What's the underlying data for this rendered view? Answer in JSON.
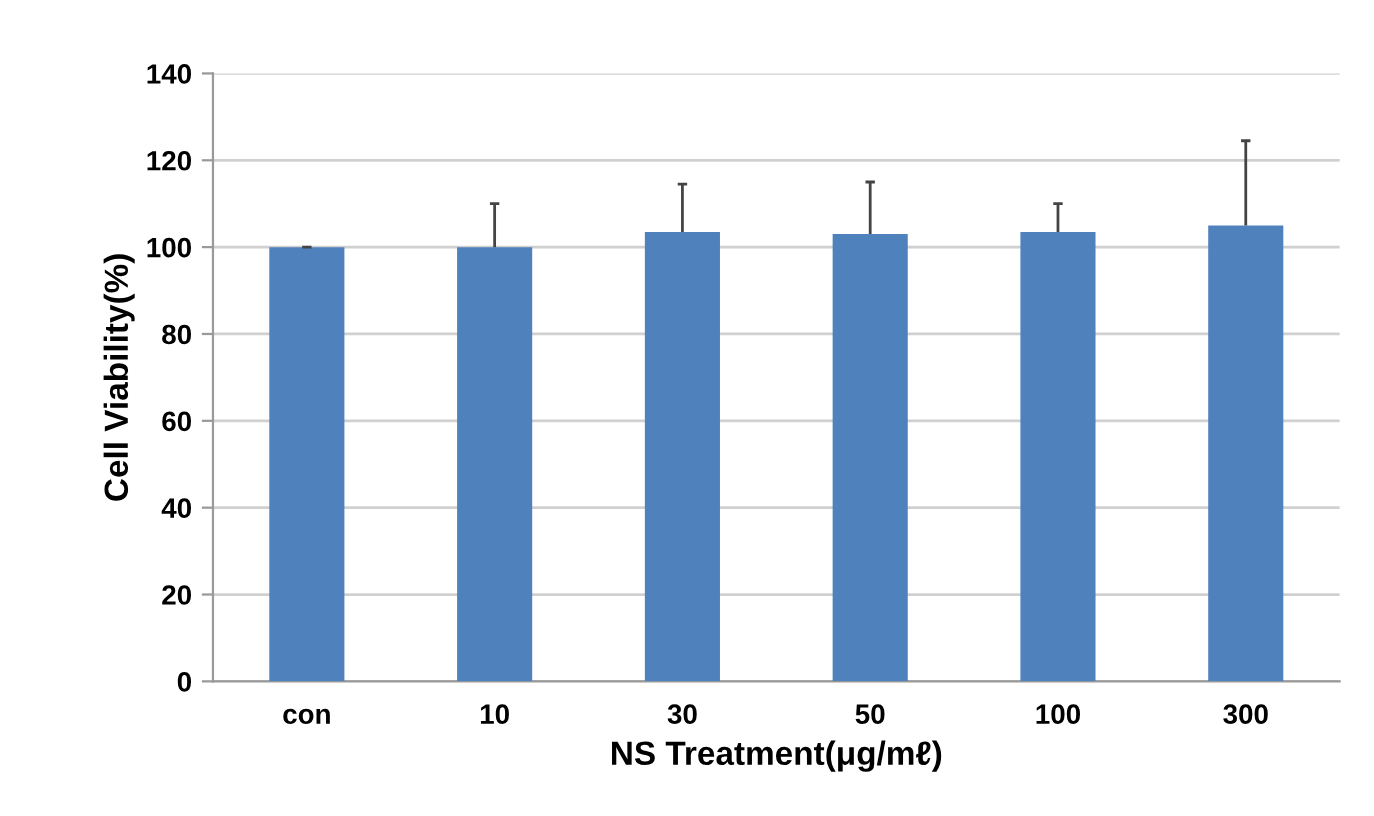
{
  "chart_data": {
    "type": "bar",
    "xlabel": "NS Treatment(μg/mℓ)",
    "ylabel": "Cell Viability(%)",
    "categories": [
      "con",
      "10",
      "30",
      "50",
      "100",
      "300"
    ],
    "values": [
      100,
      100,
      103.5,
      103,
      103.5,
      105
    ],
    "errors": [
      [
        100,
        100
      ],
      [
        100,
        110
      ],
      [
        103.5,
        114.5
      ],
      [
        103,
        115
      ],
      [
        103.5,
        110
      ],
      [
        105,
        124.5
      ]
    ],
    "color": "#4f81bd",
    "ylim": [
      0,
      140
    ],
    "yticks": [
      0,
      20,
      40,
      60,
      80,
      100,
      120,
      140
    ],
    "grid": "y"
  }
}
